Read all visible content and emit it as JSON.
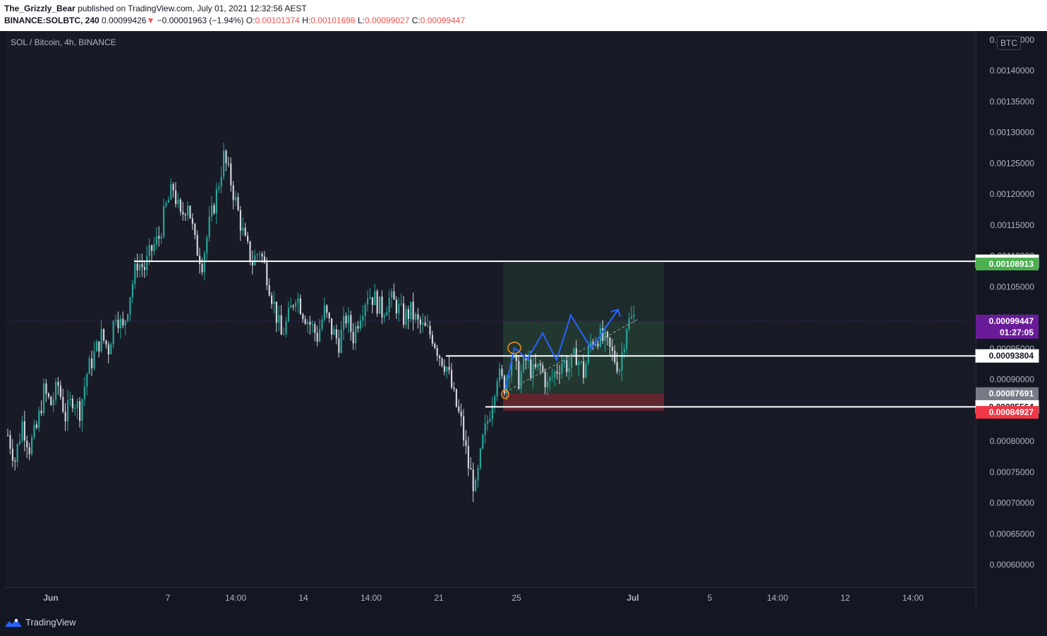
{
  "header": {
    "author": "The_Grizzly_Bear",
    "published": "published on TradingView.com, July 01, 2021 12:32:56 AEST",
    "symbol": "BINANCE:SOLBTC, 240",
    "last": "0.00099426",
    "change_arrow": "▼",
    "change": "−0.00001963 (−1.94%)",
    "o_label": "O:",
    "o_value": "0.00101374",
    "h_label": "H:",
    "h_value": "0.00101698",
    "l_label": "L:",
    "l_value": "0.00099027",
    "c_label": "C:",
    "c_value": "0.00099447"
  },
  "legend": "SOL / Bitcoin, 4h, BINANCE",
  "currency_tag": "BTC",
  "footer": {
    "brand": "TradingView"
  },
  "colors": {
    "up": "#26a69a",
    "down": "#d1d4dc",
    "target_green": "#4caf50",
    "stop_red": "#f23645",
    "current_purple": "#6a1b9a",
    "projection_blue": "#2962ff"
  },
  "chart_data": {
    "type": "candlestick",
    "ylim": [
      0.00056,
      0.00145
    ],
    "y_ticks": [
      "0.00060000",
      "0.00065000",
      "0.00070000",
      "0.00075000",
      "0.00080000",
      "0.00085000",
      "0.00090000",
      "0.00095000",
      "0.00100000",
      "0.00105000",
      "0.00110000",
      "0.00115000",
      "0.00120000",
      "0.00125000",
      "0.00130000",
      "0.00135000",
      "0.00140000",
      "0.00145000"
    ],
    "x_ticks": [
      "Jun",
      "7",
      "14:00",
      "14",
      "14:00",
      "21",
      "25",
      "Jul",
      "5",
      "14:00",
      "12",
      "14:00"
    ],
    "close_path": [
      0.00081,
      0.00077,
      0.00083,
      0.00079,
      0.00082,
      0.00088,
      0.00086,
      0.00089,
      0.00084,
      0.00087,
      0.00085,
      0.00091,
      0.00094,
      0.00097,
      0.00095,
      0.00101,
      0.00098,
      0.00104,
      0.00109,
      0.00108,
      0.00111,
      0.00113,
      0.00118,
      0.00121,
      0.00116,
      0.00119,
      0.00112,
      0.00109,
      0.00115,
      0.0012,
      0.00126,
      0.00122,
      0.00117,
      0.00112,
      0.00109,
      0.00111,
      0.00107,
      0.00102,
      0.00097,
      0.001,
      0.00104,
      0.00101,
      0.00099,
      0.00097,
      0.00101,
      0.00098,
      0.00096,
      0.001,
      0.00097,
      0.00101,
      0.00104,
      0.00103,
      0.00101,
      0.00103,
      0.00102,
      0.001,
      0.00101,
      0.00099,
      0.00098,
      0.00097,
      0.00094,
      0.00092,
      0.00087,
      0.00083,
      0.00076,
      0.00072,
      0.0008,
      0.00085,
      0.00091,
      0.00089,
      0.00094,
      0.0009,
      0.00093,
      0.00091,
      0.00092,
      0.00089,
      0.00091,
      0.00093,
      0.00092,
      0.00094,
      0.00091,
      0.00096,
      0.00097,
      0.00096,
      0.00094,
      0.00092,
      0.00099,
      0.001
    ],
    "levels": [
      {
        "label": "0.00109131",
        "value": 0.00109131
      },
      {
        "label": "0.00093804",
        "value": 0.00093804
      },
      {
        "label": "0.00085564",
        "value": 0.00085564
      }
    ],
    "target_label": "0.00108913",
    "current_price_label": "0.00099447",
    "current_countdown": "01:27:05",
    "entry_label": "0.00087691",
    "stop_label": "0.00084927",
    "projection_path": [
      0.000883,
      0.000951,
      0.000933,
      0.000975,
      0.000931,
      0.001004,
      0.00095,
      0.001013
    ]
  }
}
